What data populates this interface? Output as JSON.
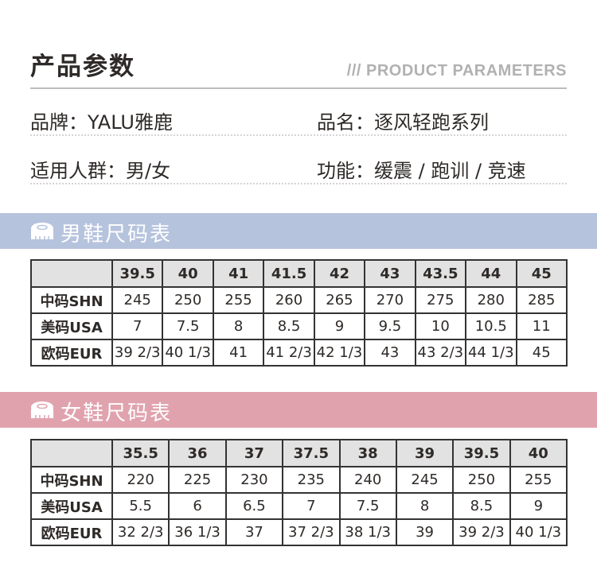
{
  "header": {
    "title": "产品参数",
    "subtitle": "/// PRODUCT PARAMETERS"
  },
  "info": {
    "brand": "品牌：YALU雅鹿",
    "name": "品名：逐风轻跑系列",
    "audience": "适用人群：男/女",
    "function": "功能：缓震 / 跑训 / 竞速"
  },
  "men": {
    "title": "男鞋尺码表",
    "color": "#b6c3dd",
    "sizes": [
      "39.5",
      "40",
      "41",
      "41.5",
      "42",
      "43",
      "43.5",
      "44",
      "45"
    ],
    "rows": [
      {
        "label": "中码SHN",
        "values": [
          "245",
          "250",
          "255",
          "260",
          "265",
          "270",
          "275",
          "280",
          "285"
        ]
      },
      {
        "label": "美码USA",
        "values": [
          "7",
          "7.5",
          "8",
          "8.5",
          "9",
          "9.5",
          "10",
          "10.5",
          "11"
        ]
      },
      {
        "label": "欧码EUR",
        "values": [
          "39 2/3",
          "40 1/3",
          "41",
          "41 2/3",
          "42 1/3",
          "43",
          "43 2/3",
          "44 1/3",
          "45"
        ]
      }
    ]
  },
  "women": {
    "title": "女鞋尺码表",
    "color": "#e0a3ae",
    "sizes": [
      "35.5",
      "36",
      "37",
      "37.5",
      "38",
      "39",
      "39.5",
      "40"
    ],
    "rows": [
      {
        "label": "中码SHN",
        "values": [
          "220",
          "225",
          "230",
          "235",
          "240",
          "245",
          "250",
          "255"
        ]
      },
      {
        "label": "美码USA",
        "values": [
          "5.5",
          "6",
          "6.5",
          "7",
          "7.5",
          "8",
          "8.5",
          "9"
        ]
      },
      {
        "label": "欧码EUR",
        "values": [
          "32 2/3",
          "36 1/3",
          "37",
          "37 2/3",
          "38 1/3",
          "39",
          "39 2/3",
          "40 1/3"
        ]
      }
    ]
  }
}
